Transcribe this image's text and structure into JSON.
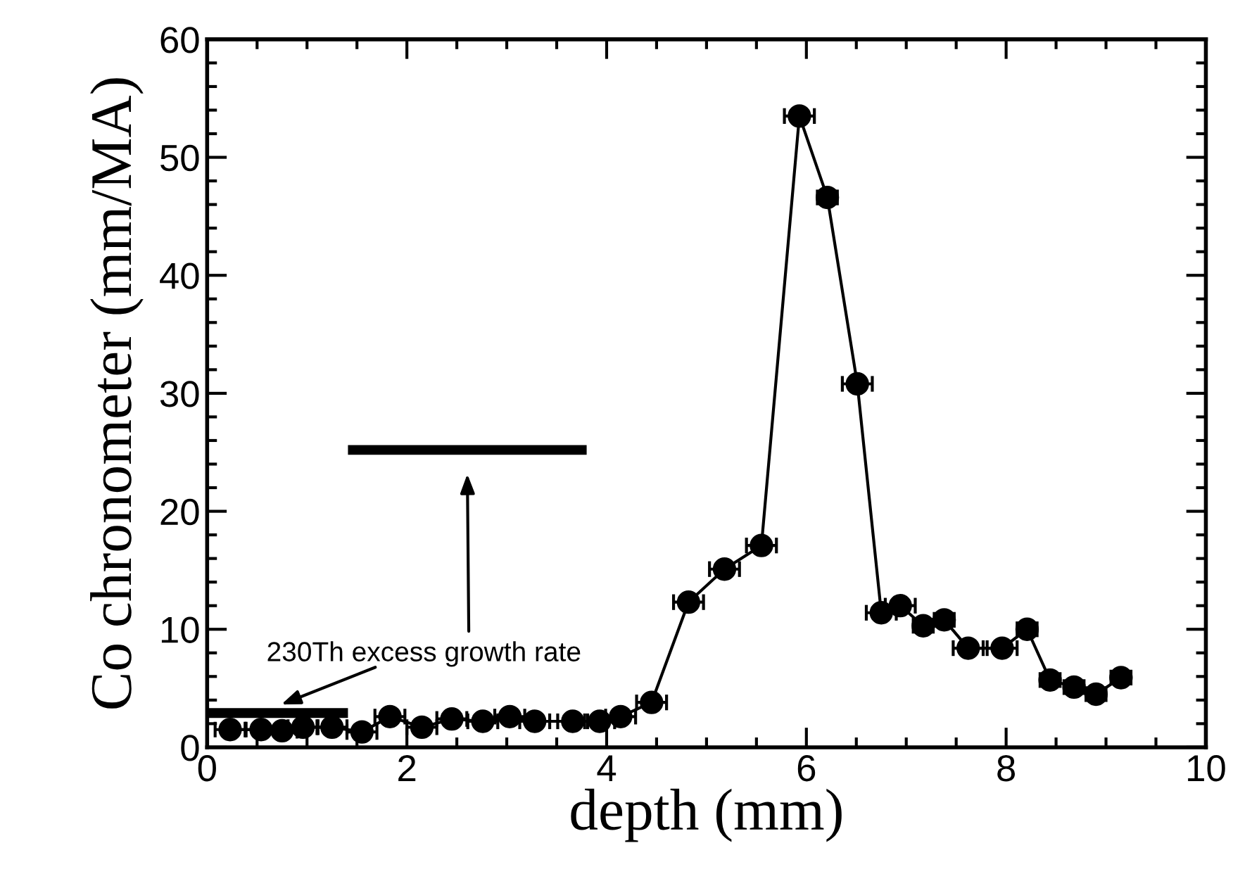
{
  "chart_data": {
    "type": "line",
    "xlabel": "depth (mm)",
    "ylabel": "Co chronometer (mm/MA)",
    "xlim": [
      0,
      10
    ],
    "xticks": [
      0,
      2,
      4,
      6,
      8,
      10
    ],
    "ylim": [
      0,
      60
    ],
    "yticks": [
      0,
      10,
      20,
      30,
      40,
      50,
      60
    ],
    "grid": false,
    "marker": "circle",
    "line_style": "solid",
    "series": [
      {
        "color": "#000000",
        "x": [
          0.23,
          0.54,
          0.75,
          0.96,
          1.25,
          1.55,
          1.83,
          2.15,
          2.45,
          2.76,
          3.03,
          3.28,
          3.66,
          3.93,
          4.14,
          4.45,
          4.82,
          5.18,
          5.55,
          5.93,
          6.21,
          6.51,
          6.75,
          6.94,
          7.17,
          7.38,
          7.62,
          7.96,
          8.21,
          8.44,
          8.68,
          8.9,
          9.15
        ],
        "values": [
          1.5,
          1.5,
          1.4,
          1.7,
          1.7,
          1.3,
          2.6,
          1.7,
          2.4,
          2.2,
          2.6,
          2.2,
          2.2,
          2.2,
          2.6,
          3.8,
          12.3,
          15.1,
          17.1,
          53.5,
          46.6,
          30.8,
          11.4,
          12.0,
          10.3,
          10.8,
          8.4,
          8.4,
          10.0,
          5.7,
          5.1,
          4.5,
          5.9
        ],
        "xerrors": [
          0.15,
          0.15,
          0.15,
          0.15,
          0.15,
          0.15,
          0.15,
          0.15,
          0.15,
          0.15,
          0.15,
          0.15,
          0.15,
          0.15,
          0.15,
          0.15,
          0.15,
          0.15,
          0.15,
          0.15,
          0.1,
          0.15,
          0.15,
          0.15,
          0.1,
          0.1,
          0.15,
          0.15,
          0.1,
          0.1,
          0.1,
          0.1,
          0.1
        ]
      },
      {
        "color": "#000000",
        "marker": "none",
        "x": [
          0,
          1.41
        ],
        "values": [
          2.9,
          2.9
        ]
      },
      {
        "color": "#000000",
        "marker": "none",
        "x": [
          1.41,
          3.8
        ],
        "values": [
          25.2,
          25.2
        ]
      }
    ],
    "annotations": [
      "230Th excess growth rate"
    ]
  }
}
